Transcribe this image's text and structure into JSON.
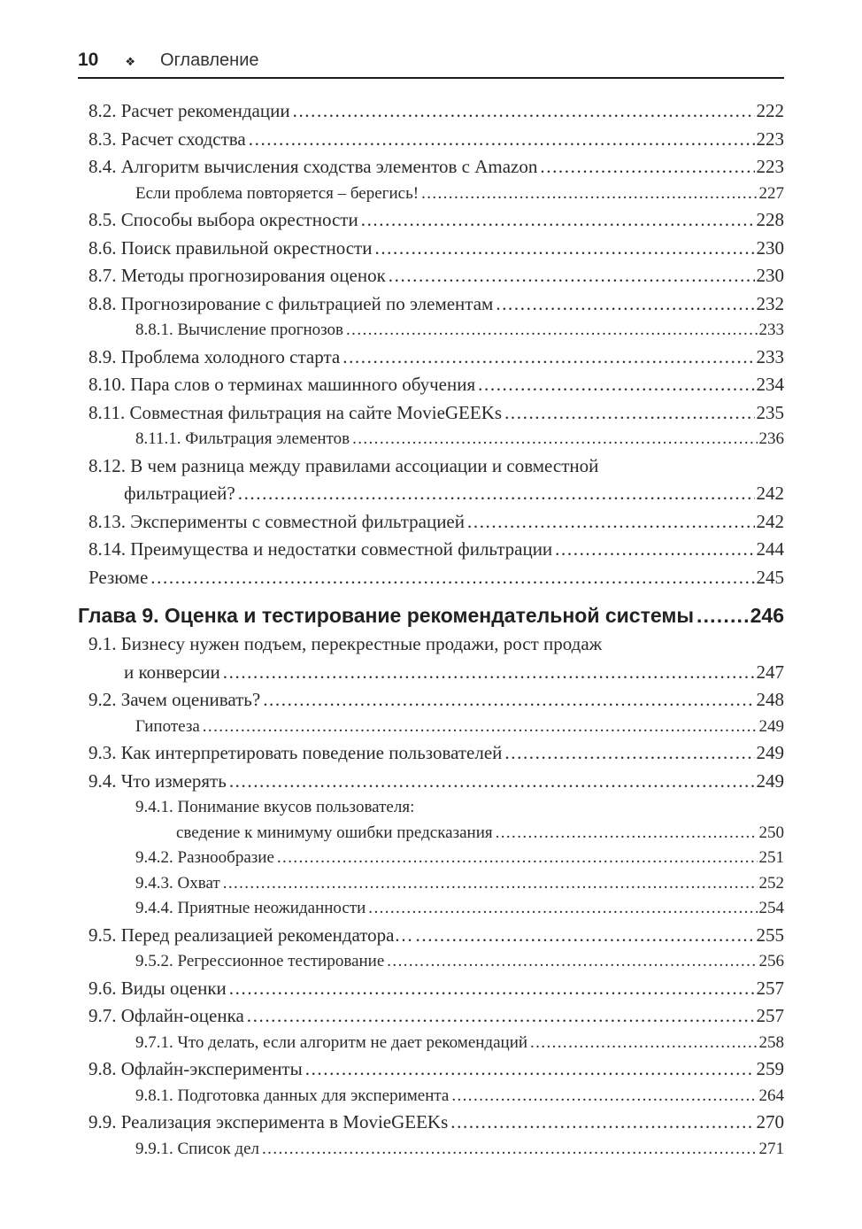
{
  "header": {
    "page_number": "10",
    "separator_icon": "❖",
    "title": "Оглавление"
  },
  "colors": {
    "text": "#2a2a2a",
    "rule": "#1b1b1b",
    "background": "#ffffff"
  },
  "toc": {
    "entries": [
      {
        "style": "l1",
        "lines": [
          "8.2. Расчет рекомендации"
        ],
        "page": "222"
      },
      {
        "style": "l1",
        "lines": [
          "8.3. Расчет сходства"
        ],
        "page": "223"
      },
      {
        "style": "l1",
        "lines": [
          "8.4. Алгоритм вычисления сходства элементов с Amazon"
        ],
        "page": "223"
      },
      {
        "style": "l2",
        "lines": [
          "Если проблема повторяется – берегись!"
        ],
        "page": "227"
      },
      {
        "style": "l1",
        "lines": [
          "8.5. Способы выбора окрестности"
        ],
        "page": "228"
      },
      {
        "style": "l1",
        "lines": [
          "8.6. Поиск правильной окрестности"
        ],
        "page": "230"
      },
      {
        "style": "l1",
        "lines": [
          "8.7. Методы прогнозирования оценок"
        ],
        "page": "230"
      },
      {
        "style": "l1",
        "lines": [
          "8.8. Прогнозирование с фильтрацией по элементам"
        ],
        "page": "232"
      },
      {
        "style": "l2",
        "lines": [
          "8.8.1. Вычисление прогнозов"
        ],
        "page": "233"
      },
      {
        "style": "l1",
        "lines": [
          "8.9. Проблема холодного старта"
        ],
        "page": "233"
      },
      {
        "style": "l1",
        "lines": [
          "8.10. Пара слов о терминах машинного обучения"
        ],
        "page": "234"
      },
      {
        "style": "l1",
        "lines": [
          "8.11. Совместная фильтрация на сайте MovieGEEKs"
        ],
        "page": "235"
      },
      {
        "style": "l2",
        "lines": [
          "8.11.1. Фильтрация элементов"
        ],
        "page": "236"
      },
      {
        "style": "l1",
        "lines": [
          "8.12. В чем разница между правилами ассоциации и совместной",
          "фильтрацией?"
        ],
        "page": "242"
      },
      {
        "style": "l1",
        "lines": [
          "8.13. Эксперименты с совместной фильтрацией"
        ],
        "page": "242"
      },
      {
        "style": "l1",
        "lines": [
          "8.14. Преимущества и недостатки совместной фильтрации"
        ],
        "page": "244"
      },
      {
        "style": "l1",
        "lines": [
          "Резюме"
        ],
        "page": "245"
      },
      {
        "style": "chapter",
        "lines": [
          "Глава 9. Оценка и тестирование рекомендательной системы"
        ],
        "page": "246"
      },
      {
        "style": "l1",
        "lines": [
          "9.1. Бизнесу нужен подъем, перекрестные продажи, рост продаж",
          "и конверсии"
        ],
        "page": "247"
      },
      {
        "style": "l1",
        "lines": [
          "9.2. Зачем оценивать?"
        ],
        "page": "248"
      },
      {
        "style": "l2",
        "lines": [
          "Гипотеза"
        ],
        "page": "249"
      },
      {
        "style": "l1",
        "lines": [
          "9.3. Как интерпретировать поведение пользователей"
        ],
        "page": "249"
      },
      {
        "style": "l1",
        "lines": [
          "9.4. Что измерять"
        ],
        "page": "249"
      },
      {
        "style": "l2",
        "lines": [
          "9.4.1. Понимание вкусов пользователя:",
          "сведение к минимуму ошибки предсказания"
        ],
        "page": "250"
      },
      {
        "style": "l2",
        "lines": [
          "9.4.2. Разнообразие"
        ],
        "page": "251"
      },
      {
        "style": "l2",
        "lines": [
          "9.4.3. Охват"
        ],
        "page": "252"
      },
      {
        "style": "l2",
        "lines": [
          "9.4.4. Приятные неожиданности"
        ],
        "page": "254"
      },
      {
        "style": "l1",
        "lines": [
          "9.5. Перед реализацией рекомендатора…"
        ],
        "page": "255"
      },
      {
        "style": "l2",
        "lines": [
          "9.5.2. Регрессионное тестирование"
        ],
        "page": "256"
      },
      {
        "style": "l1",
        "lines": [
          "9.6. Виды оценки"
        ],
        "page": "257"
      },
      {
        "style": "l1",
        "lines": [
          "9.7. Офлайн-оценка"
        ],
        "page": "257"
      },
      {
        "style": "l2",
        "lines": [
          "9.7.1. Что делать, если алгоритм не дает рекомендаций"
        ],
        "page": "258"
      },
      {
        "style": "l1",
        "lines": [
          "9.8. Офлайн-эксперименты"
        ],
        "page": "259"
      },
      {
        "style": "l2",
        "lines": [
          "9.8.1. Подготовка данных для эксперимента"
        ],
        "page": "264"
      },
      {
        "style": "l1",
        "lines": [
          "9.9. Реализация эксперимента в MovieGEEKs"
        ],
        "page": "270"
      },
      {
        "style": "l2",
        "lines": [
          "9.9.1. Список дел"
        ],
        "page": "271"
      }
    ]
  }
}
